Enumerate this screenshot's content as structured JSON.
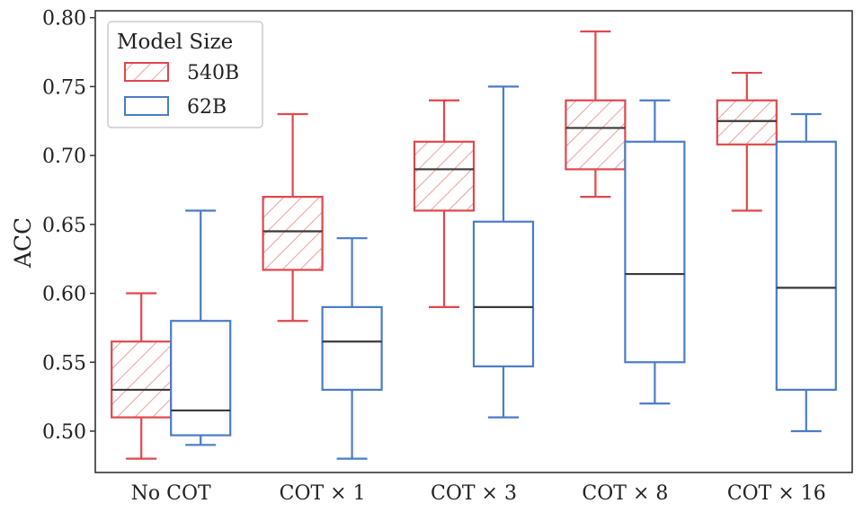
{
  "chart_data": {
    "type": "box",
    "ylabel": "ACC",
    "ylim": [
      0.47,
      0.805
    ],
    "yticks": [
      "0.50",
      "0.55",
      "0.60",
      "0.65",
      "0.70",
      "0.75",
      "0.80"
    ],
    "categories": [
      "No COT",
      "COT × 1",
      "COT × 3",
      "COT × 8",
      "COT × 16"
    ],
    "grid": false,
    "legend": {
      "title": "Model Size",
      "placement": "top-left"
    },
    "series": [
      {
        "name": "540B",
        "color": "#e0474c",
        "hatch": true,
        "boxes": [
          {
            "whislo": 0.48,
            "q1": 0.51,
            "med": 0.53,
            "q3": 0.565,
            "whishi": 0.6
          },
          {
            "whislo": 0.58,
            "q1": 0.617,
            "med": 0.645,
            "q3": 0.67,
            "whishi": 0.73
          },
          {
            "whislo": 0.59,
            "q1": 0.66,
            "med": 0.69,
            "q3": 0.71,
            "whishi": 0.74
          },
          {
            "whislo": 0.67,
            "q1": 0.69,
            "med": 0.72,
            "q3": 0.74,
            "whishi": 0.79
          },
          {
            "whislo": 0.66,
            "q1": 0.708,
            "med": 0.725,
            "q3": 0.74,
            "whishi": 0.76
          }
        ]
      },
      {
        "name": "62B",
        "color": "#4a7cc7",
        "hatch": false,
        "boxes": [
          {
            "whislo": 0.49,
            "q1": 0.497,
            "med": 0.515,
            "q3": 0.58,
            "whishi": 0.66
          },
          {
            "whislo": 0.48,
            "q1": 0.53,
            "med": 0.565,
            "q3": 0.59,
            "whishi": 0.64
          },
          {
            "whislo": 0.51,
            "q1": 0.547,
            "med": 0.59,
            "q3": 0.652,
            "whishi": 0.75
          },
          {
            "whislo": 0.52,
            "q1": 0.55,
            "med": 0.614,
            "q3": 0.71,
            "whishi": 0.74
          },
          {
            "whislo": 0.5,
            "q1": 0.53,
            "med": 0.604,
            "q3": 0.71,
            "whishi": 0.73
          }
        ]
      }
    ]
  }
}
